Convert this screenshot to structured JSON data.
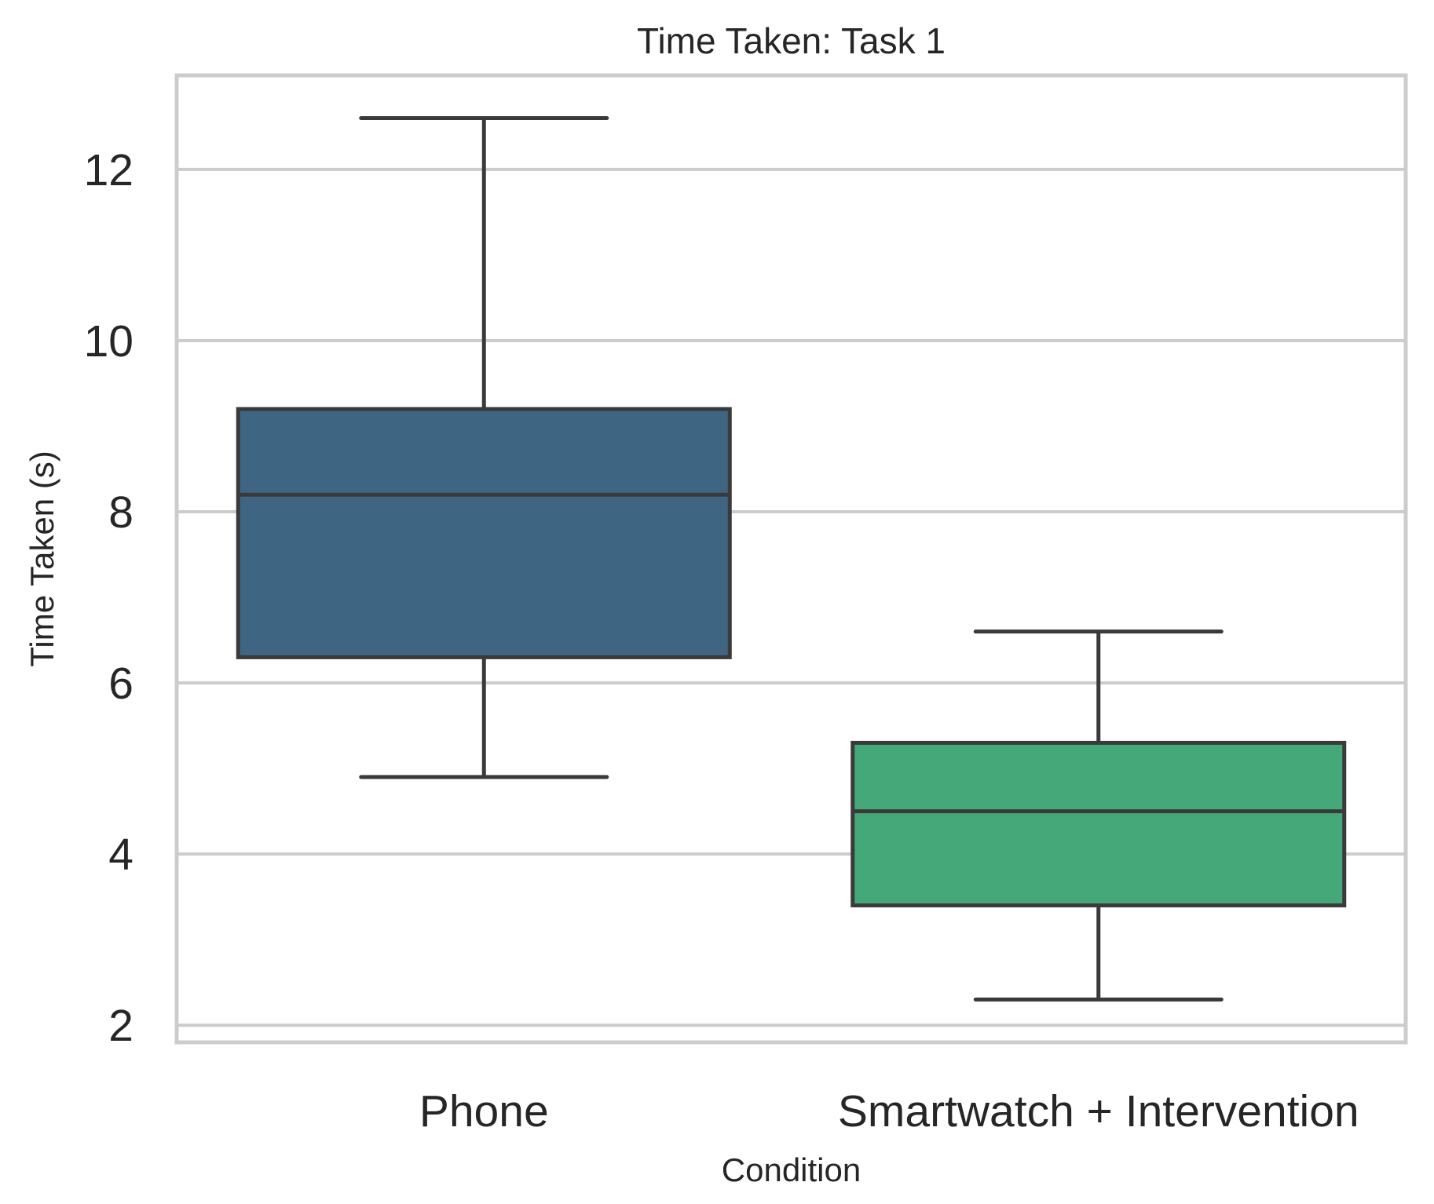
{
  "chart_data": {
    "type": "box",
    "title": "Time Taken: Task 1",
    "xlabel": "Condition",
    "ylabel": "Time Taken (s)",
    "categories": [
      "Phone",
      "Smartwatch + Intervention"
    ],
    "ylim": [
      1.8,
      13.1
    ],
    "yticks": [
      2,
      4,
      6,
      8,
      10,
      12
    ],
    "ytick_labels": [
      "2",
      "4",
      "6",
      "8",
      "10",
      "12"
    ],
    "grid": "horizontal",
    "boxes": [
      {
        "category": "Phone",
        "whisker_low": 4.9,
        "q1": 6.3,
        "median": 8.2,
        "q3": 9.2,
        "whisker_high": 12.6,
        "color": "#3e6683"
      },
      {
        "category": "Smartwatch + Intervention",
        "whisker_low": 2.3,
        "q1": 3.4,
        "median": 4.5,
        "q3": 5.3,
        "whisker_high": 6.6,
        "color": "#44a878"
      }
    ],
    "colors": {
      "frame": "#cccccc",
      "grid": "#cccccc",
      "edge": "#3a3a3a",
      "text": "#262626"
    }
  }
}
